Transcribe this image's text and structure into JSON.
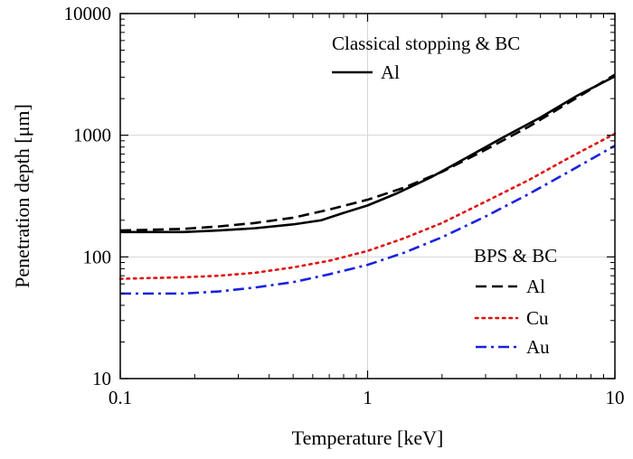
{
  "chart_data": {
    "type": "line",
    "xlabel": "Temperature [keV]",
    "ylabel": "Penetration depth [μm]",
    "xscale": "log",
    "yscale": "log",
    "xlim": [
      0.1,
      10
    ],
    "ylim": [
      10,
      10000
    ],
    "x_ticks": [
      0.1,
      1,
      10
    ],
    "x_tick_labels": [
      "0.1",
      "1",
      "10"
    ],
    "y_ticks": [
      10,
      100,
      1000,
      10000
    ],
    "y_tick_labels": [
      "10",
      "100",
      "1000",
      "10000"
    ],
    "grid": true,
    "legend_groups": [
      {
        "title": "Classical stopping & BC",
        "placement": "top-right",
        "entries": [
          0
        ]
      },
      {
        "title": "BPS & BC",
        "placement": "bottom-right",
        "entries": [
          1,
          2,
          3
        ]
      }
    ],
    "series": [
      {
        "name": "Al",
        "color": "#000000",
        "style": "solid",
        "points": [
          [
            0.1,
            160
          ],
          [
            0.13,
            160
          ],
          [
            0.18,
            160
          ],
          [
            0.25,
            165
          ],
          [
            0.35,
            172
          ],
          [
            0.5,
            185
          ],
          [
            0.65,
            200
          ],
          [
            0.8,
            230
          ],
          [
            1.0,
            265
          ],
          [
            1.3,
            330
          ],
          [
            1.8,
            450
          ],
          [
            2.5,
            650
          ],
          [
            3.5,
            950
          ],
          [
            5.0,
            1400
          ],
          [
            7.0,
            2100
          ],
          [
            10.0,
            3050
          ]
        ]
      },
      {
        "name": "Al",
        "color": "#000000",
        "style": "dashed",
        "points": [
          [
            0.1,
            165
          ],
          [
            0.13,
            167
          ],
          [
            0.18,
            170
          ],
          [
            0.25,
            178
          ],
          [
            0.35,
            190
          ],
          [
            0.5,
            210
          ],
          [
            0.7,
            245
          ],
          [
            1.0,
            295
          ],
          [
            1.4,
            370
          ],
          [
            2.0,
            500
          ],
          [
            3.0,
            760
          ],
          [
            4.5,
            1180
          ],
          [
            6.5,
            1850
          ],
          [
            10.0,
            3150
          ]
        ]
      },
      {
        "name": "Cu",
        "color": "#e01010",
        "style": "dotted",
        "points": [
          [
            0.1,
            66
          ],
          [
            0.13,
            67
          ],
          [
            0.18,
            68
          ],
          [
            0.25,
            70
          ],
          [
            0.35,
            74
          ],
          [
            0.5,
            82
          ],
          [
            0.7,
            93
          ],
          [
            1.0,
            112
          ],
          [
            1.4,
            142
          ],
          [
            2.0,
            190
          ],
          [
            3.0,
            285
          ],
          [
            4.5,
            430
          ],
          [
            6.5,
            650
          ],
          [
            10.0,
            1030
          ]
        ]
      },
      {
        "name": "Au",
        "color": "#1a22dd",
        "style": "dashdot",
        "points": [
          [
            0.1,
            50
          ],
          [
            0.13,
            50
          ],
          [
            0.18,
            50
          ],
          [
            0.25,
            52
          ],
          [
            0.35,
            56
          ],
          [
            0.5,
            62
          ],
          [
            0.7,
            72
          ],
          [
            1.0,
            86
          ],
          [
            1.4,
            108
          ],
          [
            2.0,
            145
          ],
          [
            3.0,
            215
          ],
          [
            4.5,
            330
          ],
          [
            6.5,
            500
          ],
          [
            10.0,
            820
          ]
        ]
      }
    ]
  }
}
